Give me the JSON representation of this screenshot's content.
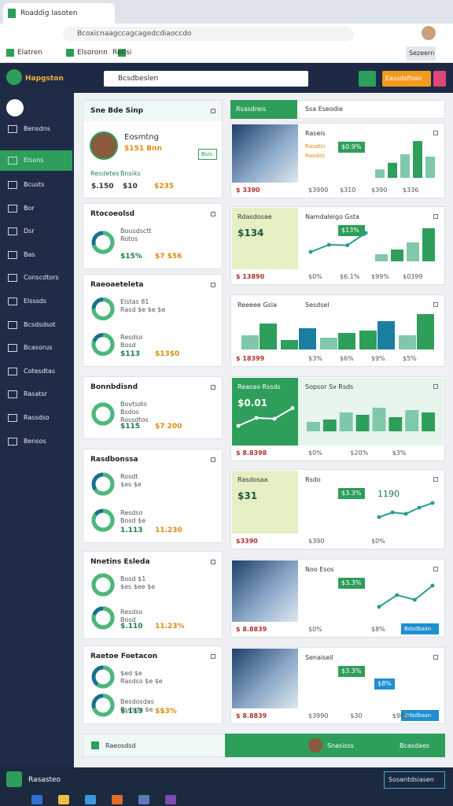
{
  "browser": {
    "tab": "Roaddig Iasoten",
    "url": "Bcoxicnaagccagcagedcdiaoccdo",
    "bookmarks": [
      "Elatren",
      "Elsoronn",
      "Rensi"
    ],
    "bookmark_button": "Sezeern"
  },
  "header": {
    "logo": "Hapgston",
    "search": "Bcsdbeslen",
    "button": "Eassdsfisan"
  },
  "sidebar": {
    "items": [
      "Bensdns",
      "Elsons",
      "Bcusts",
      "Bor",
      "Dsr",
      "Bas",
      "Conscdtors",
      "Elsssds",
      "Bcsdsdsot",
      "Bcasorus",
      "Cotesdtas",
      "Rasatsr",
      "Rassdso",
      "Bensos"
    ],
    "active": 1
  },
  "right_header": {
    "tab": "Rsasdreis",
    "text": "Ssa Eseodie"
  },
  "left_cards": [
    {
      "title": "Sne Bde Sinp",
      "profile": {
        "name": "Eosmtng",
        "sub": "$151 Bnn",
        "badge": "Bsis"
      },
      "labels": [
        "Resdetes",
        "Bnsiks"
      ],
      "values": [
        "$.150",
        "$10",
        "$235"
      ]
    },
    {
      "title": "Rtocoeolsd",
      "rows": [
        {
          "donut": 70,
          "labels": [
            "Bousdsctt",
            "Rotos"
          ],
          "values": [
            "$15%",
            "$7 $56"
          ]
        }
      ]
    },
    {
      "title": "Raeoaeteleta",
      "rows": [
        {
          "donut": 75,
          "labels": [
            "Elstas 81",
            "Rasd $e $e $e"
          ],
          "values": []
        },
        {
          "donut": 80,
          "labels": [
            "Resdso",
            "Bosd"
          ],
          "values": [
            "$113",
            "$13$0"
          ]
        }
      ]
    },
    {
      "title": "Bonnbdisnd",
      "rows": [
        {
          "donut": 100,
          "labels": [
            "Bovtsdis",
            "Bsdos",
            "Rossdtos"
          ],
          "values": [
            "$115",
            "$7 200"
          ]
        }
      ]
    },
    {
      "title": "Rasdbonssa",
      "rows": [
        {
          "donut": 65,
          "labels": [
            "Rosdt",
            "$es $e"
          ],
          "values": []
        },
        {
          "donut": 85,
          "labels": [
            "Resdso",
            "Bosd $e"
          ],
          "values": [
            "1.113",
            "11.230"
          ]
        }
      ]
    },
    {
      "title": "Nnetins Esleda",
      "rows": [
        {
          "donut": 100,
          "labels": [
            "Bosd $1",
            "$es $ee $e"
          ],
          "values": []
        },
        {
          "donut": 80,
          "labels": [
            "Resdso",
            "Bosd"
          ],
          "values": [
            "$.110",
            "11.23%"
          ]
        }
      ]
    },
    {
      "title": "Raetoe Foetacon",
      "rows": [
        {
          "donut": 60,
          "labels": [
            "$ed $e",
            "Rasdso $e $e"
          ],
          "values": []
        },
        {
          "donut": 70,
          "labels": [
            "Besdosdas",
            "Bsdsdo $e"
          ],
          "values": [
            "$.113",
            "$$3%"
          ]
        }
      ]
    }
  ],
  "right_cards": [
    {
      "panel": "image",
      "title": "Raseis",
      "lines": [
        "Rasatsi",
        "Rasdos"
      ],
      "badge": "$0.9%",
      "bars": [
        18,
        32,
        50,
        78,
        45
      ],
      "footer": [
        "$ 3390",
        "$3990",
        "$310",
        "$390",
        "$336"
      ]
    },
    {
      "panel": "lime",
      "panel_title": "Rdasdosae",
      "panel_value": "$134",
      "title": "Namdaleigo Gsta",
      "badge": "$13%",
      "line": [
        20,
        35,
        34,
        60
      ],
      "bars": [
        15,
        25,
        40,
        70
      ],
      "footer": [
        "$ 13890",
        "$0%",
        "$6.1%",
        "$99%",
        "$0399"
      ]
    },
    {
      "panel": "white",
      "panel_title": "Reeeee Gsla",
      "title": "Sesdsel",
      "bars": [
        30,
        20,
        25,
        40,
        30
      ],
      "bars2": [
        55,
        45,
        35,
        60,
        75
      ],
      "footer": [
        "$ 18399",
        "$3%",
        "$6%",
        "$9%",
        "$5%"
      ]
    },
    {
      "panel": "green",
      "panel_title": "Reasao Rssds",
      "panel_value": "$0.01",
      "title": "Sopsor Sv Rsds",
      "panel_line": [
        10,
        30,
        28,
        55
      ],
      "bars": [
        20,
        25,
        40,
        35,
        50,
        30,
        45,
        40
      ],
      "footer": [
        "$ 8.8398",
        "$0%",
        "$20%",
        "$3%"
      ]
    },
    {
      "panel": "lime",
      "panel_title": "Rasdosaa",
      "panel_value": "$31",
      "title": "Rsdo",
      "badge": "$3.3%",
      "side_value": "1190",
      "line": [
        15,
        25,
        22,
        35,
        45
      ],
      "footer": [
        "$3390",
        "$390",
        "$0%"
      ]
    },
    {
      "panel": "image",
      "title": "Noo Esos",
      "badge": "$3.3%",
      "line": [
        15,
        40,
        30,
        60
      ],
      "footer": [
        "$ 8.8839",
        "$0%",
        "$8%"
      ],
      "button": "Bdsdbasn"
    },
    {
      "panel": "image",
      "title": "Senaiseil",
      "badge": "$3.3%",
      "badge2": "$8%",
      "footer": [
        "$ 8.8839",
        "$3990",
        "$30",
        "$90%"
      ],
      "button": "Bdsdbasn"
    }
  ],
  "bottom": {
    "left": "Raeosdsd",
    "middle": "Snasisss",
    "right": "Bcasdaes"
  },
  "taskbar": {
    "label": "Rasasteo",
    "button": "Sosantdsiasen"
  }
}
